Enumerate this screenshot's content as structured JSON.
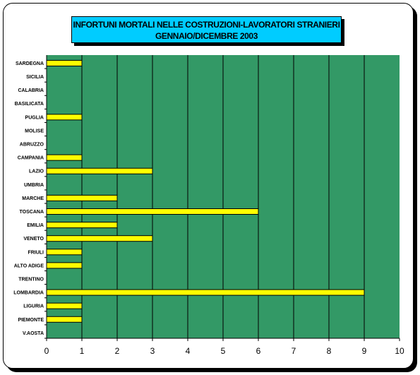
{
  "chart_data": {
    "type": "bar",
    "orientation": "horizontal",
    "title": "INFORTUNI MORTALI NELLE COSTRUZIONI-LAVORATORI STRANIERI",
    "subtitle": "GENNAIO/DICEMBRE 2003",
    "categories": [
      "SARDEGNA",
      "SICILIA",
      "CALABRIA",
      "BASILICATA",
      "PUGLIA",
      "MOLISE",
      "ABRUZZO",
      "CAMPANIA",
      "LAZIO",
      "UMBRIA",
      "MARCHE",
      "TOSCANA",
      "EMILIA",
      "VENETO",
      "FRIULI",
      "ALTO ADIGE",
      "TRENTINO",
      "LOMBARDIA",
      "LIGURIA",
      "PIEMONTE",
      "V.AOSTA"
    ],
    "values": [
      1,
      0,
      0,
      0,
      1,
      0,
      0,
      1,
      3,
      0,
      2,
      6,
      2,
      3,
      1,
      1,
      0,
      9,
      1,
      1,
      0
    ],
    "xlim": [
      0,
      10
    ],
    "xticks": [
      "0",
      "1",
      "2",
      "3",
      "4",
      "5",
      "6",
      "7",
      "8",
      "9",
      "10"
    ],
    "grid": "vertical",
    "colors": {
      "plot_bg": "#339966",
      "bar": "#ffff00",
      "title_bg": "#00ccff"
    }
  }
}
